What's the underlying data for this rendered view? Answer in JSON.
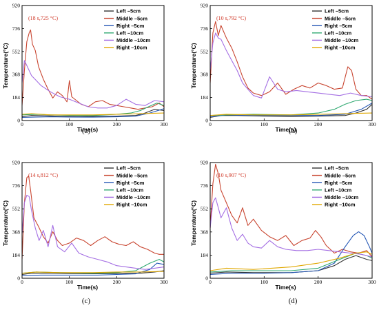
{
  "chart_data": [
    {
      "type": "line",
      "caption": "(a)",
      "annotation": "(18 s,725 °C)",
      "peak": {
        "x": 18,
        "y": 725
      },
      "xlabel": "Time(s)",
      "ylabel": "Temperature(°C)",
      "xlim": [
        0,
        300
      ],
      "ylim": [
        0,
        920
      ],
      "xticks": [
        "0",
        "100",
        "200",
        "300"
      ],
      "yticks": [
        "0",
        "184",
        "368",
        "552",
        "736",
        "920"
      ],
      "legend_position": "top-right",
      "series": [
        {
          "name": "Left  –5cm",
          "color": "#333333",
          "x": [
            0,
            10,
            20,
            50,
            80,
            120,
            160,
            200,
            240,
            260,
            280,
            300
          ],
          "y": [
            30,
            36,
            40,
            38,
            34,
            32,
            34,
            36,
            40,
            60,
            90,
            80
          ]
        },
        {
          "name": "Middle –5cm",
          "color": "#c8442f",
          "x": [
            0,
            5,
            10,
            15,
            18,
            22,
            28,
            35,
            45,
            55,
            65,
            75,
            85,
            95,
            100,
            105,
            115,
            125,
            140,
            155,
            170,
            185,
            200,
            215,
            230,
            245,
            260,
            275,
            290,
            300
          ],
          "y": [
            120,
            400,
            630,
            700,
            725,
            610,
            560,
            430,
            330,
            250,
            180,
            230,
            200,
            150,
            320,
            190,
            160,
            130,
            110,
            150,
            160,
            130,
            120,
            110,
            100,
            90,
            100,
            110,
            140,
            110
          ]
        },
        {
          "name": "Right  –5cm",
          "color": "#2356b5",
          "x": [
            0,
            30,
            60,
            100,
            150,
            200,
            240,
            270,
            300
          ],
          "y": [
            25,
            28,
            30,
            28,
            27,
            30,
            35,
            60,
            95
          ]
        },
        {
          "name": "Left  –10cm",
          "color": "#2ea870",
          "x": [
            0,
            30,
            60,
            100,
            150,
            200,
            230,
            250,
            270,
            285,
            300
          ],
          "y": [
            45,
            50,
            45,
            42,
            40,
            50,
            60,
            80,
            115,
            140,
            120
          ]
        },
        {
          "name": "Middle –10cm",
          "color": "#a46ee3",
          "x": [
            0,
            5,
            10,
            20,
            30,
            40,
            60,
            80,
            100,
            120,
            140,
            160,
            180,
            200,
            220,
            240,
            260,
            280,
            300
          ],
          "y": [
            300,
            480,
            440,
            360,
            320,
            280,
            230,
            190,
            170,
            140,
            110,
            100,
            100,
            120,
            170,
            130,
            120,
            160,
            150
          ]
        },
        {
          "name": "Right  –10cm",
          "color": "#e0a800",
          "x": [
            0,
            20,
            40,
            60,
            100,
            150,
            200,
            250,
            300
          ],
          "y": [
            50,
            55,
            50,
            45,
            45,
            45,
            50,
            55,
            60
          ]
        }
      ]
    },
    {
      "type": "line",
      "caption": "(b)",
      "annotation": "(10 s,792 °C)",
      "peak": {
        "x": 10,
        "y": 792
      },
      "xlabel": "Time(s)",
      "ylabel": "Temperature(°C)",
      "xlim": [
        0,
        300
      ],
      "ylim": [
        0,
        920
      ],
      "xticks": [
        "0",
        "100",
        "200",
        "300"
      ],
      "yticks": [
        "0",
        "184",
        "368",
        "552",
        "736",
        "920"
      ],
      "legend_position": "top-right",
      "series": [
        {
          "name": "Left  –5cm",
          "color": "#333333",
          "x": [
            0,
            20,
            50,
            100,
            150,
            200,
            250,
            270,
            290,
            300
          ],
          "y": [
            25,
            40,
            40,
            35,
            32,
            35,
            40,
            60,
            90,
            130
          ]
        },
        {
          "name": "Middle –5cm",
          "color": "#c8442f",
          "x": [
            0,
            5,
            10,
            15,
            20,
            30,
            40,
            50,
            60,
            70,
            80,
            95,
            110,
            125,
            140,
            155,
            170,
            185,
            200,
            215,
            230,
            245,
            255,
            262,
            270,
            280,
            290,
            300
          ],
          "y": [
            300,
            700,
            792,
            680,
            760,
            660,
            580,
            470,
            350,
            260,
            220,
            200,
            230,
            300,
            210,
            250,
            280,
            260,
            300,
            280,
            250,
            260,
            430,
            400,
            250,
            200,
            200,
            170
          ]
        },
        {
          "name": "Right  –5cm",
          "color": "#2356b5",
          "x": [
            0,
            30,
            80,
            150,
            200,
            250,
            280,
            300
          ],
          "y": [
            30,
            45,
            40,
            40,
            40,
            50,
            90,
            140
          ]
        },
        {
          "name": "Left  –10cm",
          "color": "#2ea870",
          "x": [
            0,
            30,
            80,
            150,
            200,
            230,
            250,
            270,
            290,
            300
          ],
          "y": [
            40,
            45,
            50,
            45,
            60,
            90,
            130,
            160,
            170,
            160
          ]
        },
        {
          "name": "Middle –10cm",
          "color": "#a46ee3",
          "x": [
            0,
            5,
            10,
            15,
            20,
            30,
            40,
            50,
            60,
            70,
            80,
            95,
            110,
            125,
            140,
            160,
            180,
            200,
            220,
            240,
            260,
            280,
            300
          ],
          "y": [
            400,
            620,
            700,
            660,
            650,
            560,
            480,
            400,
            300,
            250,
            200,
            180,
            350,
            250,
            230,
            240,
            230,
            220,
            210,
            200,
            220,
            200,
            190
          ]
        },
        {
          "name": "Right  –10cm",
          "color": "#e0a800",
          "x": [
            0,
            30,
            80,
            150,
            200,
            250,
            300
          ],
          "y": [
            40,
            50,
            45,
            45,
            50,
            55,
            60
          ]
        }
      ]
    },
    {
      "type": "line",
      "caption": "(c)",
      "annotation": "(14 s,812 °C)",
      "peak": {
        "x": 14,
        "y": 812
      },
      "xlabel": "Time(s)",
      "ylabel": "Temperature(°C)",
      "xlim": [
        0,
        300
      ],
      "ylim": [
        0,
        920
      ],
      "xticks": [
        "0",
        "100",
        "200",
        "300"
      ],
      "yticks": [
        "0",
        "184",
        "368",
        "552",
        "736",
        "920"
      ],
      "legend_position": "top-right",
      "series": [
        {
          "name": "Left  –5cm",
          "color": "#333333",
          "x": [
            0,
            20,
            60,
            100,
            150,
            200,
            250,
            280,
            300
          ],
          "y": [
            30,
            40,
            40,
            38,
            36,
            38,
            40,
            50,
            60
          ]
        },
        {
          "name": "Middle –5cm",
          "color": "#c8442f",
          "x": [
            0,
            5,
            10,
            14,
            18,
            25,
            35,
            45,
            55,
            65,
            75,
            85,
            100,
            115,
            130,
            145,
            160,
            175,
            190,
            205,
            220,
            235,
            250,
            265,
            280,
            290,
            300
          ],
          "y": [
            150,
            600,
            800,
            812,
            700,
            480,
            410,
            330,
            280,
            370,
            300,
            260,
            280,
            320,
            300,
            260,
            300,
            330,
            290,
            270,
            260,
            290,
            250,
            230,
            200,
            190,
            190
          ]
        },
        {
          "name": "Right  –5cm",
          "color": "#2356b5",
          "x": [
            0,
            40,
            100,
            160,
            200,
            240,
            270,
            285,
            300
          ],
          "y": [
            20,
            25,
            25,
            25,
            30,
            35,
            70,
            120,
            110
          ]
        },
        {
          "name": "Left  –10cm",
          "color": "#2ea870",
          "x": [
            0,
            30,
            80,
            150,
            200,
            240,
            270,
            290,
            300
          ],
          "y": [
            40,
            50,
            45,
            40,
            45,
            60,
            120,
            150,
            130
          ]
        },
        {
          "name": "Middle –10cm",
          "color": "#a46ee3",
          "x": [
            0,
            5,
            10,
            15,
            20,
            28,
            36,
            45,
            55,
            65,
            75,
            90,
            105,
            120,
            140,
            160,
            180,
            200,
            220,
            240,
            260,
            280,
            300
          ],
          "y": [
            350,
            600,
            660,
            650,
            540,
            400,
            300,
            380,
            250,
            420,
            250,
            210,
            280,
            200,
            170,
            150,
            130,
            100,
            90,
            80,
            70,
            80,
            90
          ]
        },
        {
          "name": "Right  –10cm",
          "color": "#e0a800",
          "x": [
            0,
            30,
            80,
            150,
            200,
            250,
            300
          ],
          "y": [
            40,
            50,
            45,
            45,
            50,
            50,
            55
          ]
        }
      ]
    },
    {
      "type": "line",
      "caption": "(d)",
      "annotation": "(10 s,907 °C)",
      "peak": {
        "x": 10,
        "y": 907
      },
      "xlabel": "Time(s)",
      "ylabel": "Temperature(°C)",
      "xlim": [
        0,
        300
      ],
      "ylim": [
        0,
        920
      ],
      "xticks": [
        "0",
        "100",
        "200",
        "300"
      ],
      "yticks": [
        "0",
        "184",
        "368",
        "552",
        "736",
        "920"
      ],
      "legend_position": "top-right",
      "series": [
        {
          "name": "Left  –5cm",
          "color": "#333333",
          "x": [
            0,
            30,
            80,
            150,
            200,
            230,
            250,
            270,
            290,
            300
          ],
          "y": [
            40,
            50,
            45,
            45,
            60,
            100,
            150,
            180,
            150,
            140
          ]
        },
        {
          "name": "Middle –5cm",
          "color": "#c8442f",
          "x": [
            0,
            5,
            10,
            15,
            20,
            30,
            40,
            50,
            60,
            70,
            80,
            95,
            110,
            125,
            140,
            155,
            170,
            185,
            195,
            205,
            215,
            230,
            245,
            260,
            275,
            290,
            300
          ],
          "y": [
            400,
            750,
            907,
            830,
            700,
            600,
            500,
            440,
            560,
            420,
            470,
            380,
            330,
            300,
            340,
            260,
            300,
            320,
            380,
            330,
            260,
            200,
            230,
            210,
            200,
            220,
            170
          ]
        },
        {
          "name": "Right  –5cm",
          "color": "#2356b5",
          "x": [
            0,
            40,
            100,
            150,
            200,
            230,
            250,
            265,
            275,
            285,
            295,
            300
          ],
          "y": [
            30,
            40,
            40,
            45,
            60,
            120,
            250,
            340,
            370,
            340,
            250,
            200
          ]
        },
        {
          "name": "Left  –10cm",
          "color": "#2ea870",
          "x": [
            0,
            40,
            100,
            150,
            200,
            240,
            270,
            290,
            300
          ],
          "y": [
            50,
            60,
            60,
            60,
            80,
            150,
            200,
            180,
            160
          ]
        },
        {
          "name": "Middle –10cm",
          "color": "#a46ee3",
          "x": [
            0,
            5,
            10,
            15,
            20,
            30,
            40,
            50,
            60,
            70,
            80,
            95,
            110,
            125,
            140,
            160,
            180,
            200,
            220,
            240,
            260,
            280,
            300
          ],
          "y": [
            400,
            600,
            640,
            560,
            480,
            560,
            400,
            300,
            350,
            280,
            250,
            240,
            300,
            250,
            230,
            220,
            220,
            230,
            220,
            210,
            200,
            190,
            170
          ]
        },
        {
          "name": "Right  –10cm",
          "color": "#e0a800",
          "x": [
            0,
            30,
            80,
            150,
            200,
            240,
            270,
            290,
            300
          ],
          "y": [
            60,
            80,
            70,
            90,
            120,
            160,
            200,
            210,
            190
          ]
        }
      ]
    }
  ]
}
